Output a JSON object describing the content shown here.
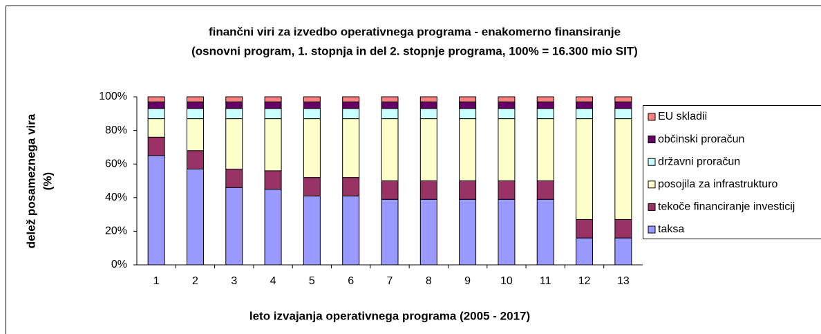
{
  "chart_data": {
    "type": "stacked_bar",
    "title": "finančni viri za izvedbo operativnega programa - enakomerno finansiranje",
    "subtitle": "(osnovni program, 1. stopnja in del 2. stopnje programa, 100% = 16.300 mio SIT)",
    "y_label": [
      "delež posameznega vira",
      "(%)"
    ],
    "x_label": "leto izvajanja operativnega programa (2005 - 2017)",
    "categories": [
      "1",
      "2",
      "3",
      "4",
      "5",
      "6",
      "7",
      "8",
      "9",
      "10",
      "11",
      "12",
      "13"
    ],
    "series": [
      {
        "name": "taksa",
        "color": "#9999ff",
        "values": [
          65,
          57,
          46,
          45,
          41,
          41,
          39,
          39,
          39,
          39,
          39,
          16,
          16
        ]
      },
      {
        "name": "tekoče financiranje investicij",
        "color": "#993366",
        "values": [
          11,
          11,
          11,
          11,
          11,
          11,
          11,
          11,
          11,
          11,
          11,
          11,
          11
        ]
      },
      {
        "name": "posojila za infrastrukturo",
        "color": "#ffffcc",
        "values": [
          11,
          19,
          30,
          31,
          35,
          35,
          37,
          37,
          37,
          37,
          37,
          60,
          60
        ]
      },
      {
        "name": "državni proračun",
        "color": "#ccffff",
        "values": [
          6,
          6,
          6,
          6,
          6,
          6,
          6,
          6,
          6,
          6,
          6,
          6,
          6
        ]
      },
      {
        "name": "občinski proračun",
        "color": "#660066",
        "values": [
          4,
          4,
          4,
          4,
          4,
          4,
          4,
          4,
          4,
          4,
          4,
          4,
          4
        ]
      },
      {
        "name": "EU skladii",
        "color": "#ff8080",
        "values": [
          3,
          3,
          3,
          3,
          3,
          3,
          3,
          3,
          3,
          3,
          3,
          3,
          3
        ]
      }
    ],
    "ylim": [
      0,
      100
    ],
    "yticks": [
      {
        "value": 0,
        "label": "0%"
      },
      {
        "value": 20,
        "label": "20%"
      },
      {
        "value": 40,
        "label": "40%"
      },
      {
        "value": 60,
        "label": "60%"
      },
      {
        "value": 80,
        "label": "80%"
      },
      {
        "value": 100,
        "label": "100%"
      }
    ],
    "legend": "right"
  }
}
